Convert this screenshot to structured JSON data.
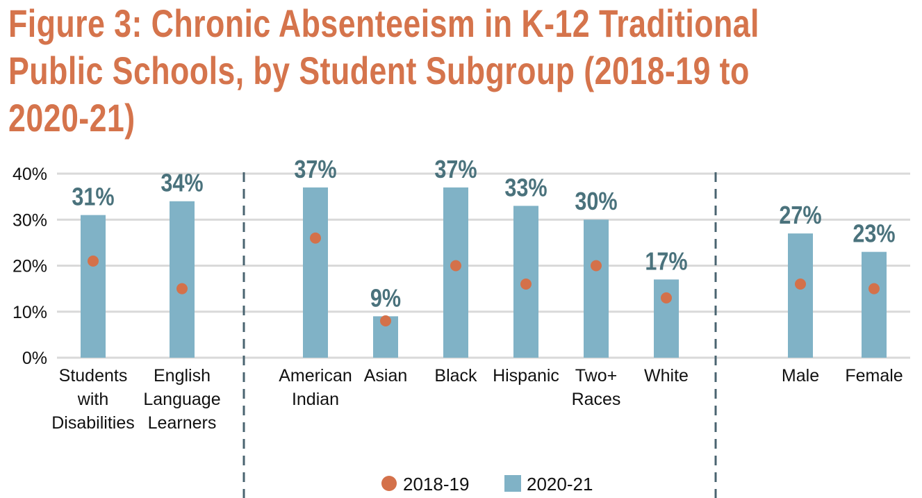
{
  "chart_data": {
    "type": "bar",
    "title": "Figure 3: Chronic Absenteeism in K-12 Traditional Public Schools, by Student Subgroup (2018-19 to 2020-21)",
    "xlabel": "",
    "ylabel": "",
    "ylim": [
      0,
      40
    ],
    "yticks": [
      "0%",
      "10%",
      "20%",
      "30%",
      "40%"
    ],
    "grid": true,
    "legend_position": "bottom-center",
    "categories": [
      [
        "Students",
        "with",
        "Disabilities"
      ],
      [
        "English",
        "Language",
        "Learners"
      ],
      [
        "American",
        "Indian"
      ],
      [
        "Asian"
      ],
      [
        "Black"
      ],
      [
        "Hispanic"
      ],
      [
        "Two+",
        "Races"
      ],
      [
        "White"
      ],
      [
        "Male"
      ],
      [
        "Female"
      ]
    ],
    "series": [
      {
        "name": "2018-19",
        "type": "dot",
        "color": "#d4714a",
        "values": [
          21,
          15,
          26,
          8,
          20,
          16,
          20,
          13,
          16,
          15
        ]
      },
      {
        "name": "2020-21",
        "type": "bar",
        "color": "#80b2c6",
        "values": [
          31,
          34,
          37,
          9,
          37,
          33,
          30,
          17,
          27,
          23
        ],
        "data_labels": [
          "31%",
          "34%",
          "37%",
          "9%",
          "37%",
          "33%",
          "30%",
          "17%",
          "27%",
          "23%"
        ]
      }
    ],
    "group_dividers_after": [
      1,
      7
    ]
  }
}
